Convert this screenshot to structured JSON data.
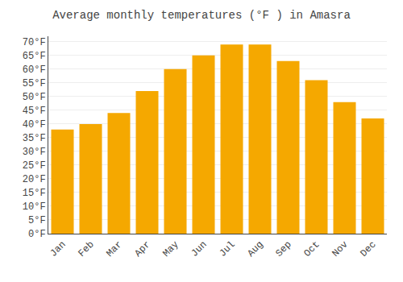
{
  "chart_data": {
    "type": "bar",
    "title": "Average monthly temperatures (°F ) in Amasra",
    "categories": [
      "Jan",
      "Feb",
      "Mar",
      "Apr",
      "May",
      "Jun",
      "Jul",
      "Aug",
      "Sep",
      "Oct",
      "Nov",
      "Dec"
    ],
    "values": [
      38,
      40,
      44,
      52,
      60,
      65,
      69,
      69,
      63,
      56,
      48,
      42
    ],
    "color": "#F5A800",
    "ylim": [
      0,
      72
    ],
    "yticks": [
      {
        "value": 0,
        "label": "0°F"
      },
      {
        "value": 5,
        "label": "5°F"
      },
      {
        "value": 10,
        "label": "10°F"
      },
      {
        "value": 15,
        "label": "15°F"
      },
      {
        "value": 20,
        "label": "20°F"
      },
      {
        "value": 25,
        "label": "25°F"
      },
      {
        "value": 30,
        "label": "30°F"
      },
      {
        "value": 35,
        "label": "35°F"
      },
      {
        "value": 40,
        "label": "40°F"
      },
      {
        "value": 45,
        "label": "45°F"
      },
      {
        "value": 50,
        "label": "50°F"
      },
      {
        "value": 55,
        "label": "55°F"
      },
      {
        "value": 60,
        "label": "60°F"
      },
      {
        "value": 65,
        "label": "65°F"
      },
      {
        "value": 70,
        "label": "70°F"
      }
    ],
    "grid": true
  }
}
